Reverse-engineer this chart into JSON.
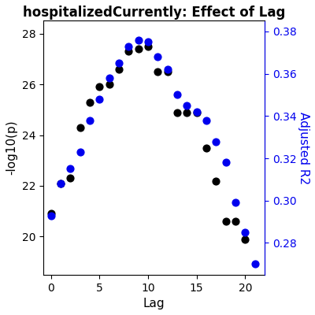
{
  "title": "hospitalizedCurrently: Effect of Lag",
  "xlabel": "Lag",
  "ylabel_left": "-log10(p)",
  "ylabel_right": "Adjusted R2",
  "lag_black": [
    0,
    1,
    2,
    3,
    4,
    5,
    6,
    7,
    8,
    9,
    10,
    11,
    12,
    13,
    14,
    15,
    16,
    17,
    18,
    19,
    20
  ],
  "neg_log10p": [
    20.9,
    22.1,
    22.3,
    24.3,
    25.3,
    25.9,
    26.0,
    26.6,
    27.3,
    27.4,
    27.5,
    26.5,
    26.5,
    24.9,
    24.9,
    24.9,
    23.5,
    22.2,
    20.6,
    20.6,
    19.9
  ],
  "lag_blue": [
    0,
    1,
    2,
    3,
    4,
    5,
    6,
    7,
    8,
    9,
    10,
    11,
    12,
    13,
    14,
    15,
    16,
    17,
    18,
    19,
    20,
    21
  ],
  "adj_r2": [
    0.293,
    0.308,
    0.315,
    0.323,
    0.338,
    0.348,
    0.358,
    0.365,
    0.373,
    0.376,
    0.375,
    0.368,
    0.362,
    0.35,
    0.345,
    0.342,
    0.338,
    0.328,
    0.318,
    0.299,
    0.285,
    0.27
  ],
  "ylim_left": [
    18.5,
    28.5
  ],
  "ylim_right": [
    0.265,
    0.385
  ],
  "yticks_left": [
    20,
    22,
    24,
    26,
    28
  ],
  "yticks_right": [
    0.28,
    0.3,
    0.32,
    0.34,
    0.36,
    0.38
  ],
  "xlim": [
    -0.8,
    22.0
  ],
  "xticks": [
    0,
    5,
    10,
    15,
    20
  ],
  "black_color": "#000000",
  "blue_color": "#0000EE",
  "bg_color": "#FFFFFF",
  "plot_bg_color": "#FFFFFF",
  "title_fontsize": 12,
  "axis_label_fontsize": 11,
  "tick_fontsize": 10,
  "dot_size": 40
}
